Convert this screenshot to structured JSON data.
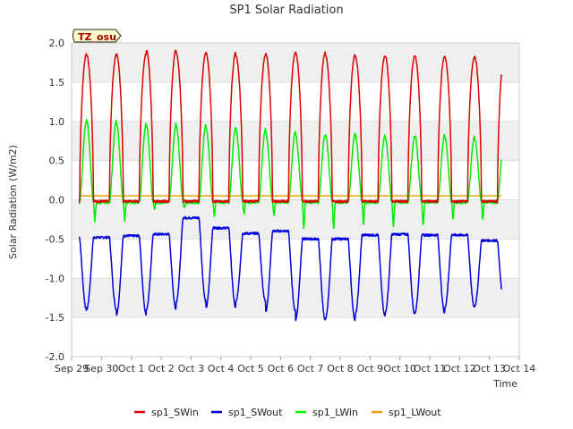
{
  "chart_data": {
    "type": "line",
    "title": "SP1 Solar Radiation",
    "xlabel": "Time",
    "ylabel": "Solar Radiation (W/m2)",
    "site_tag": "TZ_osu",
    "xlim": [
      0,
      15
    ],
    "ylim": [
      -2.0,
      2.0
    ],
    "x_tick_labels": [
      "Sep 29",
      "Sep 30",
      "Oct 1",
      "Oct 2",
      "Oct 3",
      "Oct 4",
      "Oct 5",
      "Oct 6",
      "Oct 7",
      "Oct 8",
      "Oct 9",
      "Oct 10",
      "Oct 11",
      "Oct 12",
      "Oct 13",
      "Oct 14"
    ],
    "y_ticks": [
      -2.0,
      -1.5,
      -1.0,
      -0.5,
      0.0,
      0.5,
      1.0,
      1.5,
      2.0
    ],
    "y_tick_labels": [
      "-2.0",
      "-1.5",
      "-1.0",
      "-0.5",
      "0.0",
      "0.5",
      "1.0",
      "1.5",
      "2.0"
    ],
    "x_range_data": [
      0.25,
      14.4
    ],
    "grid": true,
    "background_bands": true,
    "legend_position": "bottom",
    "colors": {
      "sp1_SWin": "#dd0000",
      "sp1_SWout": "#0000dd",
      "sp1_LWin": "#00ee00",
      "sp1_LWout": "#f0a000",
      "band": "#efefef",
      "grid": "#dddddd",
      "tag_fill": "#ffffcc"
    },
    "series": [
      {
        "name": "sp1_SWin",
        "kind": "daily_peaks",
        "peak_days": [
          1,
          2,
          3,
          4,
          5,
          6,
          7,
          8,
          9,
          10,
          11,
          12,
          13,
          14
        ],
        "peaks": [
          1.85,
          1.86,
          1.91,
          1.87,
          1.87,
          1.84,
          1.87,
          1.88,
          1.85,
          1.83,
          1.84,
          1.83,
          1.82,
          1.83
        ],
        "baseline": 0.0
      },
      {
        "name": "sp1_SWout",
        "kind": "daily_troughs",
        "trough_days": [
          1,
          2,
          3,
          4,
          5,
          6,
          7,
          8,
          9,
          10,
          11,
          12,
          13,
          14
        ],
        "troughs": [
          -1.4,
          -1.46,
          -1.4,
          -1.3,
          -1.38,
          -1.3,
          -1.42,
          -1.53,
          -1.53,
          -1.47,
          -1.45,
          -1.44,
          -1.38,
          -1.36
        ],
        "night_levels": [
          -0.48,
          -0.46,
          -0.44,
          -0.23,
          -0.36,
          -0.43,
          -0.4,
          -0.5,
          -0.5,
          -0.45,
          -0.44,
          -0.45,
          -0.45,
          -0.52
        ],
        "end_value": -0.52
      },
      {
        "name": "sp1_LWin",
        "kind": "daily_peaks",
        "peak_days": [
          1,
          2,
          3,
          4,
          5,
          6,
          7,
          8,
          9,
          10,
          11,
          12,
          13,
          14
        ],
        "peaks": [
          1.04,
          1.0,
          0.99,
          0.98,
          0.95,
          0.93,
          0.89,
          0.86,
          0.87,
          0.85,
          0.84,
          0.85,
          0.83,
          0.81
        ],
        "night_dips": [
          -0.27,
          -0.28,
          -0.12,
          -0.1,
          -0.22,
          -0.18,
          -0.2,
          -0.36,
          -0.38,
          -0.3,
          -0.36,
          -0.33,
          -0.26,
          -0.25
        ],
        "baseline": -0.03
      },
      {
        "name": "sp1_LWout",
        "kind": "flat",
        "value": 0.05
      }
    ]
  }
}
